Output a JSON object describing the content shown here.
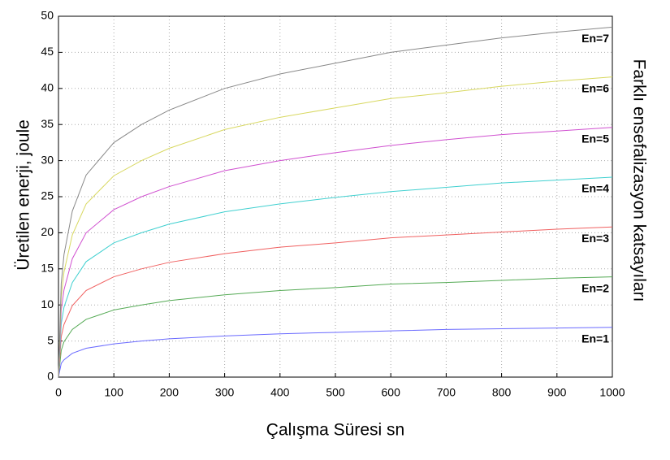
{
  "chart_data": {
    "type": "line",
    "xlabel": "Çalışma Süresi sn",
    "ylabel": "Üretilen enerji, joule",
    "y2label": "Farklı ensefalizasyon katsayıları",
    "x": [
      0,
      5,
      10,
      25,
      50,
      100,
      150,
      200,
      300,
      400,
      500,
      600,
      700,
      800,
      900,
      1000
    ],
    "series": [
      {
        "name": "En=1",
        "color": "#6a6aff",
        "values": [
          0,
          1.9,
          2.4,
          3.3,
          4,
          4.6,
          5,
          5.3,
          5.7,
          6,
          6.2,
          6.4,
          6.6,
          6.7,
          6.8,
          6.9
        ]
      },
      {
        "name": "En=2",
        "color": "#55aa55",
        "values": [
          0,
          3.7,
          4.9,
          6.6,
          8,
          9.3,
          10,
          10.6,
          11.4,
          12,
          12.4,
          12.9,
          13.1,
          13.4,
          13.7,
          13.9
        ]
      },
      {
        "name": "En=3",
        "color": "#f06060",
        "values": [
          0,
          5.6,
          7.3,
          9.9,
          12,
          13.9,
          15,
          15.9,
          17.1,
          18,
          18.6,
          19.3,
          19.7,
          20.1,
          20.5,
          20.8
        ]
      },
      {
        "name": "En=4",
        "color": "#40d0d0",
        "values": [
          0,
          7.4,
          9.7,
          13.1,
          16,
          18.6,
          20,
          21.2,
          22.9,
          24,
          24.9,
          25.7,
          26.3,
          26.9,
          27.3,
          27.7
        ]
      },
      {
        "name": "En=5",
        "color": "#d050d0",
        "values": [
          0,
          9.3,
          12.1,
          16.4,
          20,
          23.2,
          25,
          26.4,
          28.6,
          30,
          31.1,
          32.1,
          32.9,
          33.6,
          34.1,
          34.6
        ]
      },
      {
        "name": "En=6",
        "color": "#d8d860",
        "values": [
          0,
          11.1,
          14.6,
          19.7,
          24,
          27.9,
          30,
          31.7,
          34.3,
          36,
          37.3,
          38.6,
          39.4,
          40.3,
          41,
          41.6
        ]
      },
      {
        "name": "En=7",
        "color": "#888888",
        "values": [
          0,
          13,
          17,
          23,
          28,
          32.5,
          35,
          37,
          40,
          42,
          43.5,
          45,
          46,
          47,
          47.8,
          48.5
        ]
      }
    ],
    "xlim": [
      0,
      1000
    ],
    "xticks": [
      0,
      100,
      200,
      300,
      400,
      500,
      600,
      700,
      800,
      900,
      1000
    ],
    "ylim": [
      0,
      50
    ],
    "yticks": [
      0,
      5,
      10,
      15,
      20,
      25,
      30,
      35,
      40,
      45,
      50
    ],
    "grid": true
  }
}
